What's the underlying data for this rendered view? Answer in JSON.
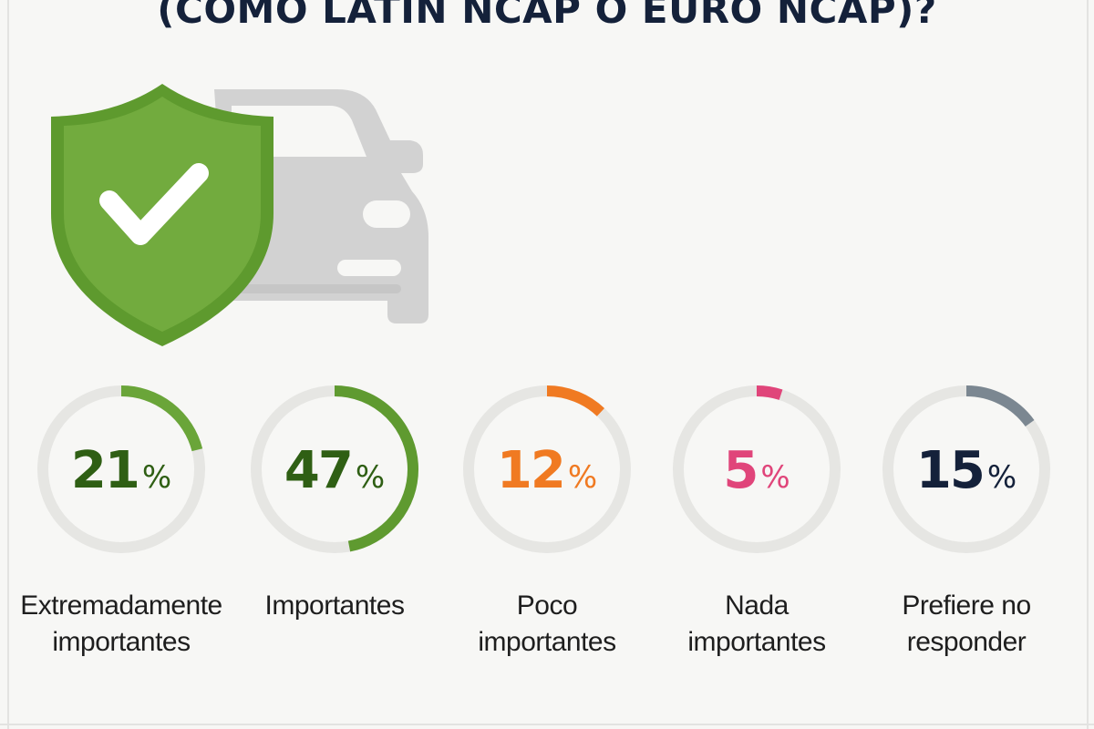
{
  "title": "(COMO LATIN NCAP O EURO NCAP)?",
  "icons": {
    "shield": "shield-check-icon",
    "car": "car-icon"
  },
  "colors": {
    "track": "#e6e6e3",
    "shield_fill": "#6fa53a",
    "shield_border": "#5e9a2e",
    "car": "#d2d2d2",
    "text_dark": "#14213a"
  },
  "chart_data": {
    "type": "donut",
    "unit": "%",
    "items": [
      {
        "label_lines": [
          "Extremadamente",
          "importantes"
        ],
        "value": 21,
        "display": "21",
        "color": "#6aa539",
        "text_color": "#2f5f14"
      },
      {
        "label_lines": [
          "Importantes"
        ],
        "value": 47,
        "display": "47",
        "color": "#5f9a30",
        "text_color": "#2f5f14"
      },
      {
        "label_lines": [
          "Poco",
          "importantes"
        ],
        "value": 12,
        "display": "12",
        "color": "#f07a22",
        "text_color": "#f07a22"
      },
      {
        "label_lines": [
          "Nada",
          "importantes"
        ],
        "value": 5,
        "display": "5",
        "color": "#e0457a",
        "text_color": "#e0457a"
      },
      {
        "label_lines": [
          "Prefiere no",
          "responder"
        ],
        "value": 15,
        "display": "15",
        "color": "#7b8791",
        "text_color": "#14213a"
      }
    ]
  }
}
